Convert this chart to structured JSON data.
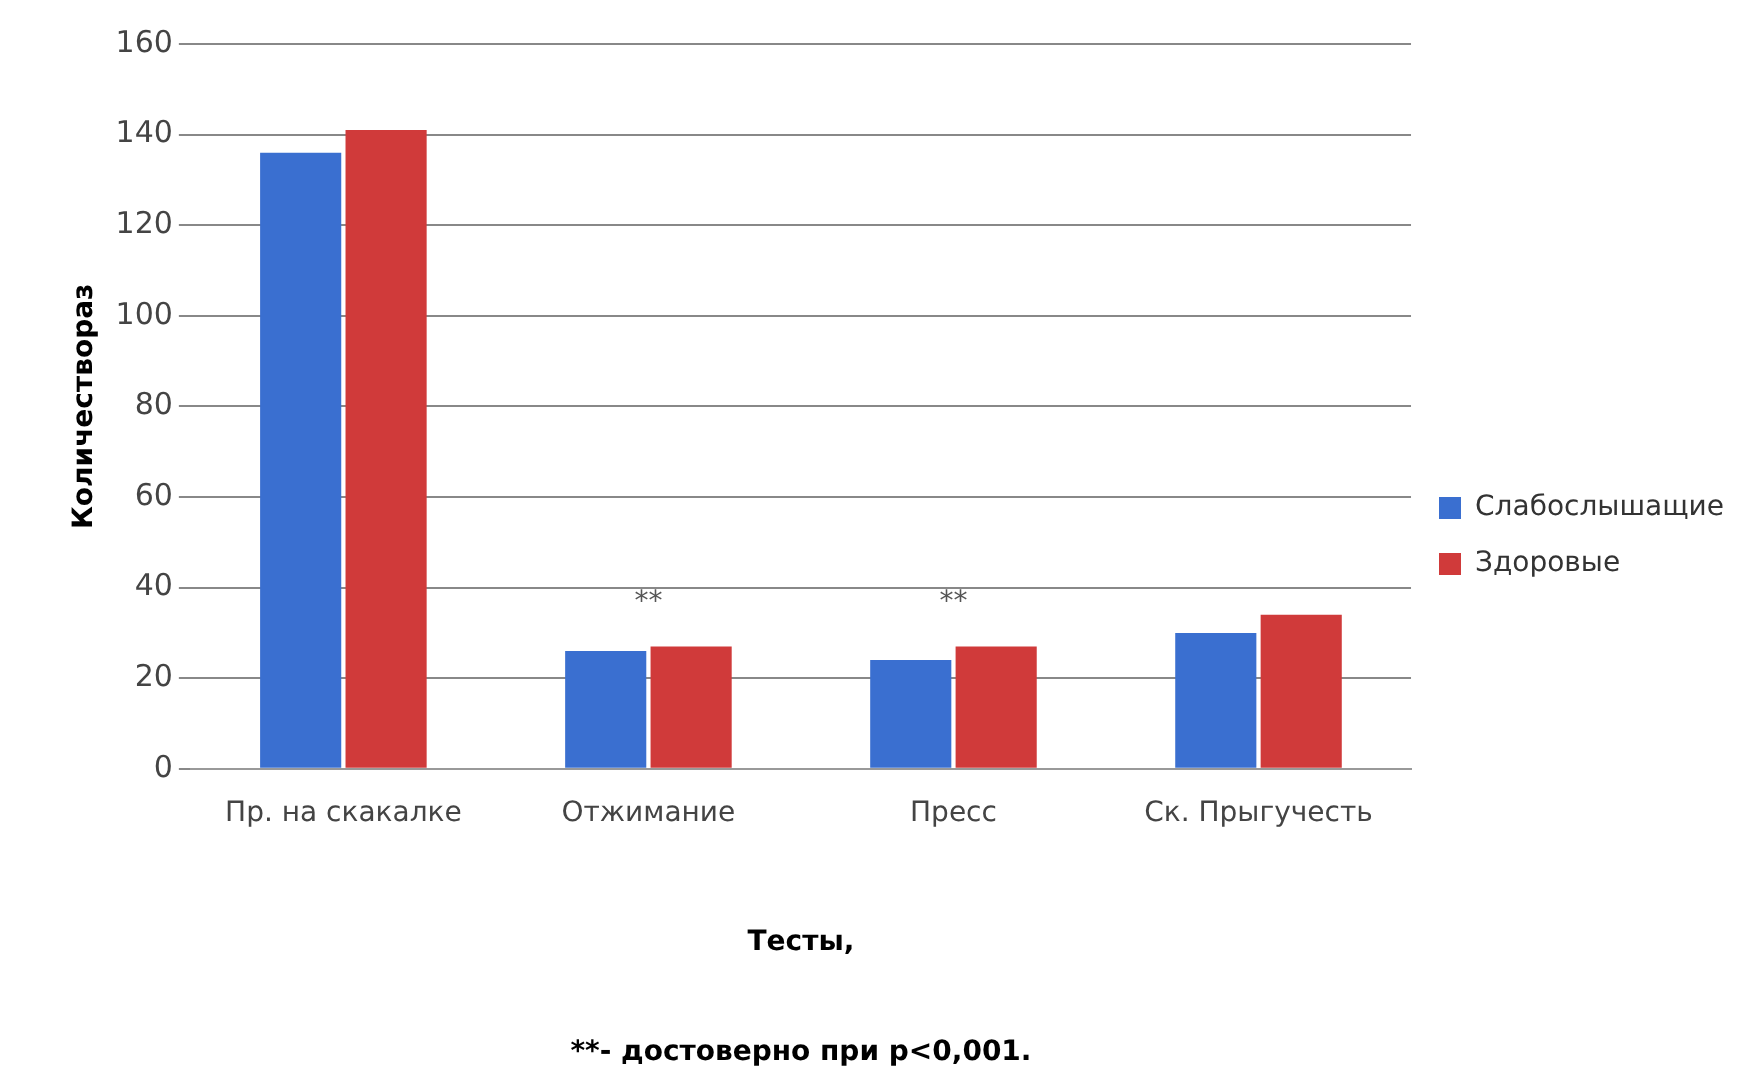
{
  "chart_data": {
    "type": "bar",
    "xlabel": "Тесты,",
    "ylabel": "Количествораз",
    "categories": [
      "Пр. на скакалке",
      "Отжимание",
      "Пресс",
      "Ск. Прыгучесть"
    ],
    "series": [
      {
        "name": "Слабослышащие",
        "color": "#3a6fd0",
        "values": [
          136,
          26,
          24,
          30
        ]
      },
      {
        "name": "Здоровые",
        "color": "#d03a3a",
        "values": [
          141,
          27,
          27,
          34
        ]
      }
    ],
    "ylim": [
      0,
      160
    ],
    "yticks": [
      0,
      20,
      40,
      60,
      80,
      100,
      120,
      140,
      160
    ],
    "grid": "y",
    "legend": "right",
    "annotations": [
      {
        "text": "**",
        "x": "Отжимание",
        "y": 27
      },
      {
        "text": "**",
        "x": "Пресс",
        "y": 27
      },
      "**- достоверно при p<0,001."
    ]
  }
}
